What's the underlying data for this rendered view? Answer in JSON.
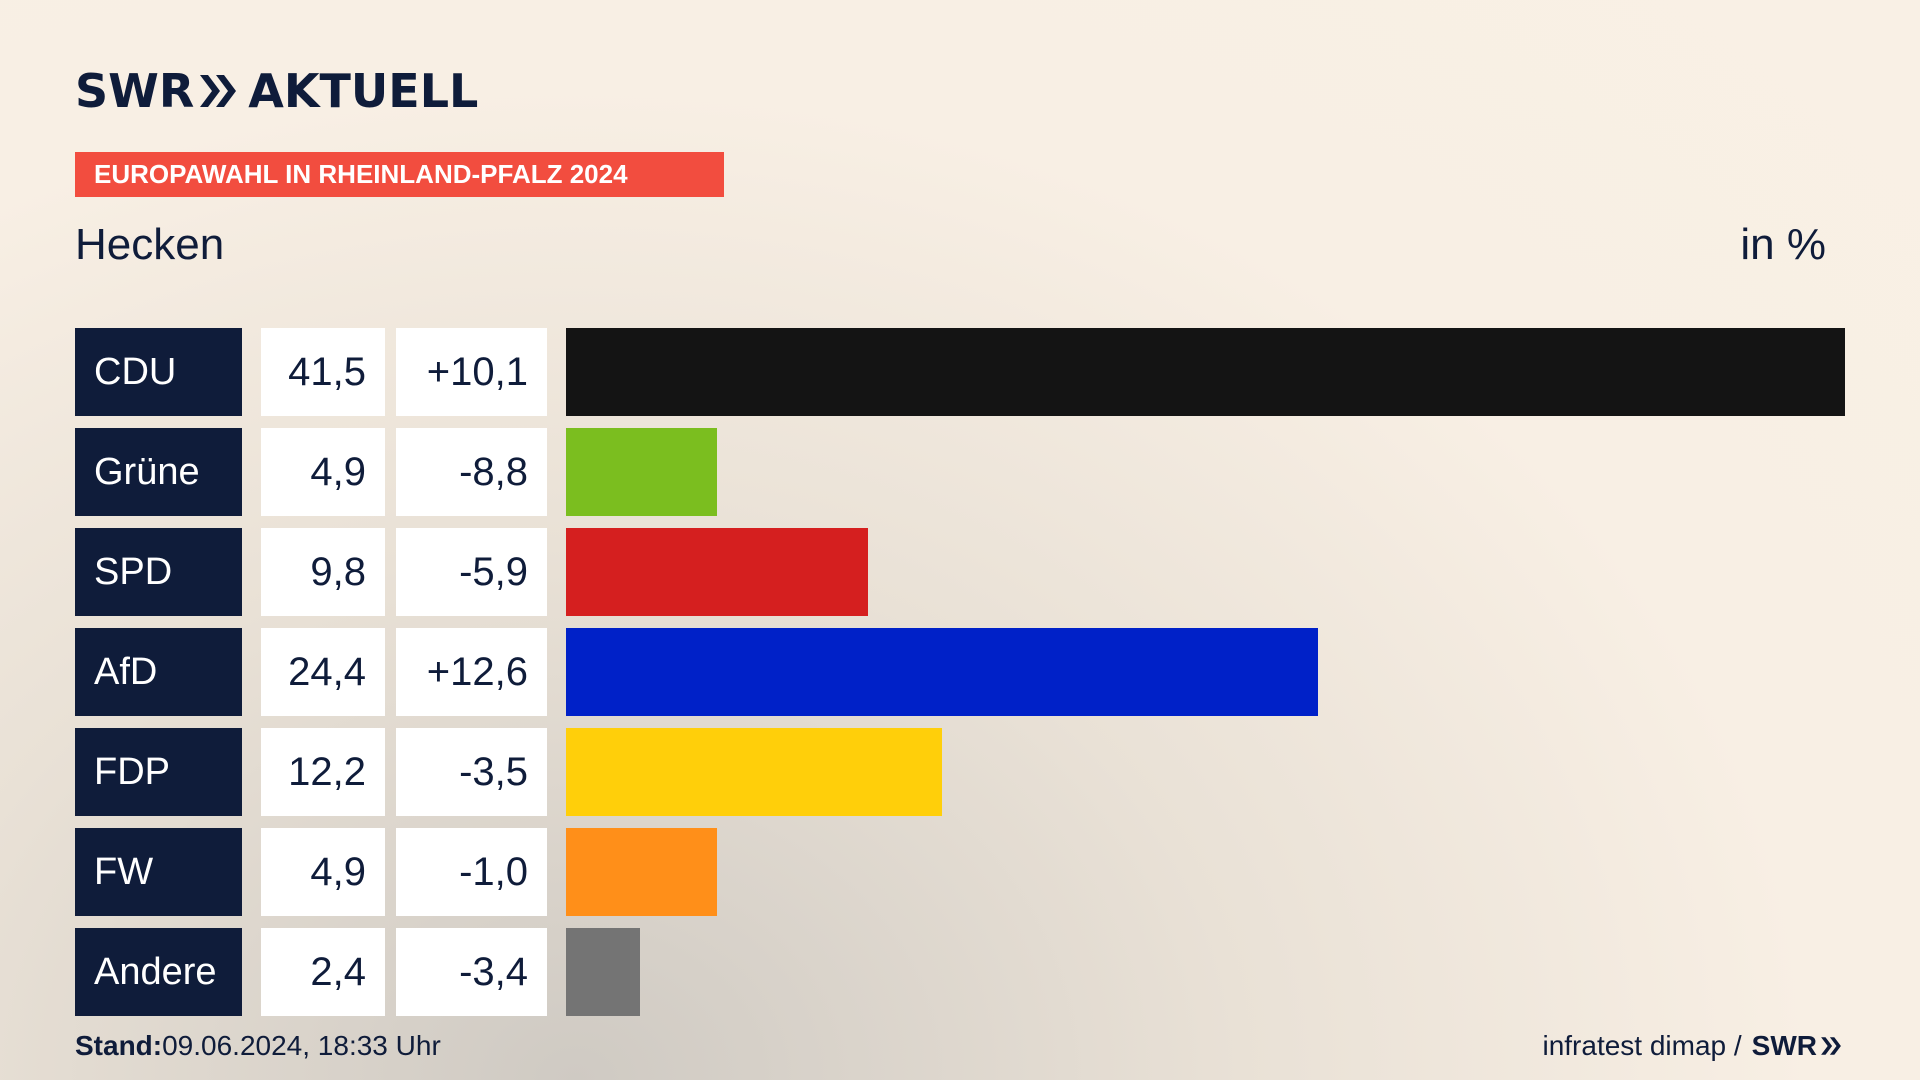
{
  "brand": {
    "name_left": "SWR",
    "name_right": "AKTUELL"
  },
  "banner": "EUROPAWAHL IN RHEINLAND-PFALZ 2024",
  "location": "Hecken",
  "unit": "in %",
  "footer": {
    "stand_label": "Stand:",
    "stand_value": "09.06.2024, 18:33 Uhr",
    "source": "infratest dimap /",
    "source_brand": "SWR"
  },
  "colors": {
    "navy": "#0f1c3a",
    "banner": "#f24d3f"
  },
  "chart_data": {
    "type": "bar",
    "orientation": "horizontal",
    "categories": [
      "CDU",
      "Grüne",
      "SPD",
      "AfD",
      "FDP",
      "FW",
      "Andere"
    ],
    "values": [
      41.5,
      4.9,
      9.8,
      24.4,
      12.2,
      4.9,
      2.4
    ],
    "value_labels": [
      "41,5",
      "4,9",
      "9,8",
      "24,4",
      "12,2",
      "4,9",
      "2,4"
    ],
    "diffs": [
      10.1,
      -8.8,
      -5.9,
      12.6,
      -3.5,
      -1.0,
      -3.4
    ],
    "diff_labels": [
      "+10,1",
      "-8,8",
      "-5,9",
      "+12,6",
      "-3,5",
      "-1,0",
      "-3,4"
    ],
    "bar_colors": [
      "#141414",
      "#7bbe1f",
      "#d51f1f",
      "#0021c8",
      "#ffcf0a",
      "#ff8f19",
      "#747474"
    ],
    "xlim": [
      0,
      41.5
    ],
    "grid": false
  }
}
